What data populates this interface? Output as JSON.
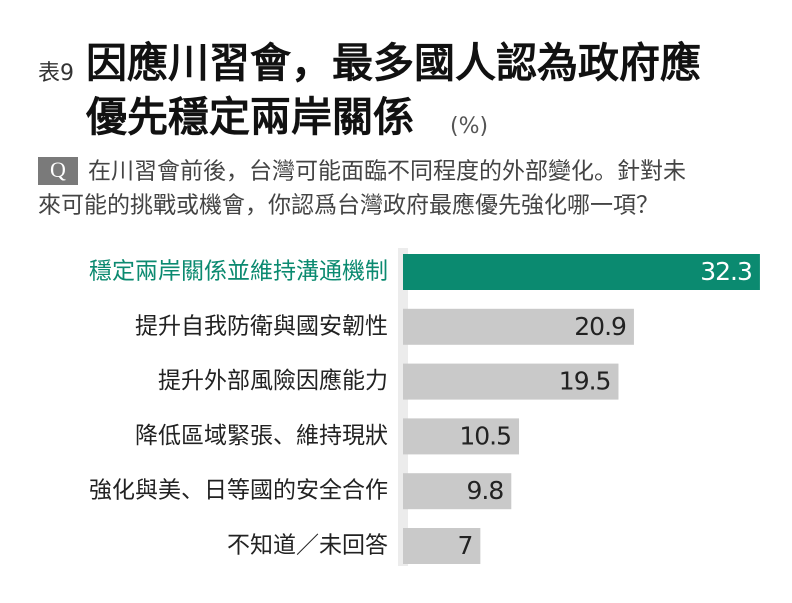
{
  "chart_data": {
    "type": "bar",
    "orientation": "horizontal",
    "table_label": "表9",
    "title": [
      "因應川習會，最多國人認為政府應",
      "優先穩定兩岸關係"
    ],
    "unit": "(%)",
    "question_label": "Q",
    "question": [
      "在川習會前後，台灣可能面臨不同程度的外部變化。針對未",
      "來可能的挑戰或機會，你認爲台灣政府最應優先強化哪一項？"
    ],
    "categories": [
      "穩定兩岸關係並維持溝通機制",
      "提升自我防衛與國安韌性",
      "提升外部風險因應能力",
      "降低區域緊張、維持現狀",
      "強化與美、日等國的安全合作",
      "不知道／未回答"
    ],
    "values": [
      32.3,
      20.9,
      19.5,
      10.5,
      9.8,
      7
    ],
    "colors": [
      "#0b8a70",
      "#c9c9c9",
      "#c9c9c9",
      "#c9c9c9",
      "#c9c9c9",
      "#c9c9c9"
    ],
    "category_colors": [
      "#0b8a70",
      "#222222",
      "#222222",
      "#222222",
      "#222222",
      "#222222"
    ]
  }
}
